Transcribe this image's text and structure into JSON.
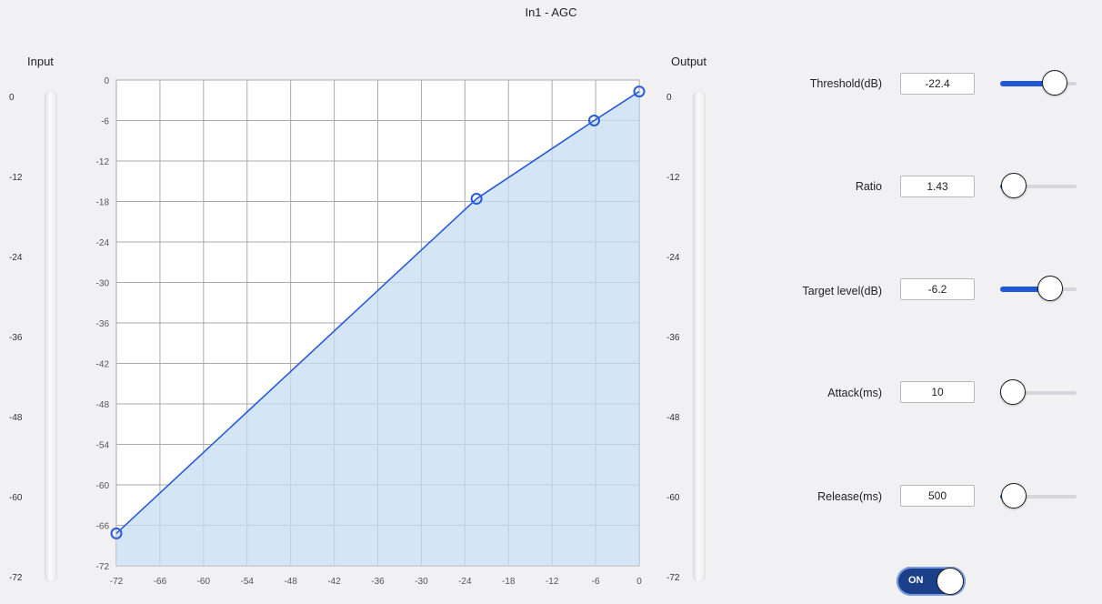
{
  "window_title": "In1 - AGC",
  "input_meter": {
    "label": "Input",
    "scale": [
      "0",
      "-12",
      "-24",
      "-36",
      "-48",
      "-60",
      "-72"
    ]
  },
  "output_meter": {
    "label": "Output",
    "scale": [
      "0",
      "-12",
      "-24",
      "-36",
      "-48",
      "-60",
      "-72"
    ]
  },
  "chart_data": {
    "type": "area",
    "x_ticks": [
      "-72",
      "-66",
      "-60",
      "-54",
      "-48",
      "-42",
      "-36",
      "-30",
      "-24",
      "-18",
      "-12",
      "-6",
      "0"
    ],
    "y_ticks": [
      "0",
      "-6",
      "-12",
      "-18",
      "-24",
      "-30",
      "-36",
      "-42",
      "-48",
      "-54",
      "-60",
      "-66",
      "-72"
    ],
    "xlim": [
      -72,
      0
    ],
    "ylim": [
      -72,
      0
    ],
    "grid": true,
    "curve": [
      [
        -72,
        -67.2
      ],
      [
        -22.4,
        -17.6
      ],
      [
        -6.2,
        -6.0
      ],
      [
        0,
        -1.7
      ]
    ],
    "control_points": [
      [
        -72,
        -67.2
      ],
      [
        -22.4,
        -17.6
      ],
      [
        -6.2,
        -6.0
      ],
      [
        0,
        -1.7
      ]
    ],
    "line_color": "#2a5bd7",
    "fill_color": "#c6dcf1"
  },
  "params": [
    {
      "label": "Threshold(dB)",
      "value": "-22.4",
      "level": 0.85
    },
    {
      "label": "Ratio",
      "value": "1.43",
      "level": 0.02
    },
    {
      "label": "Target level(dB)",
      "value": "-6.2",
      "level": 0.75
    },
    {
      "label": "Attack(ms)",
      "value": "10",
      "level": 0.0
    },
    {
      "label": "Release(ms)",
      "value": "500",
      "level": 0.02
    }
  ],
  "toggle": {
    "label": "ON",
    "state": "on"
  },
  "colors": {
    "accent": "#1f57d6",
    "toggle_bg": "#1c3f8a"
  }
}
